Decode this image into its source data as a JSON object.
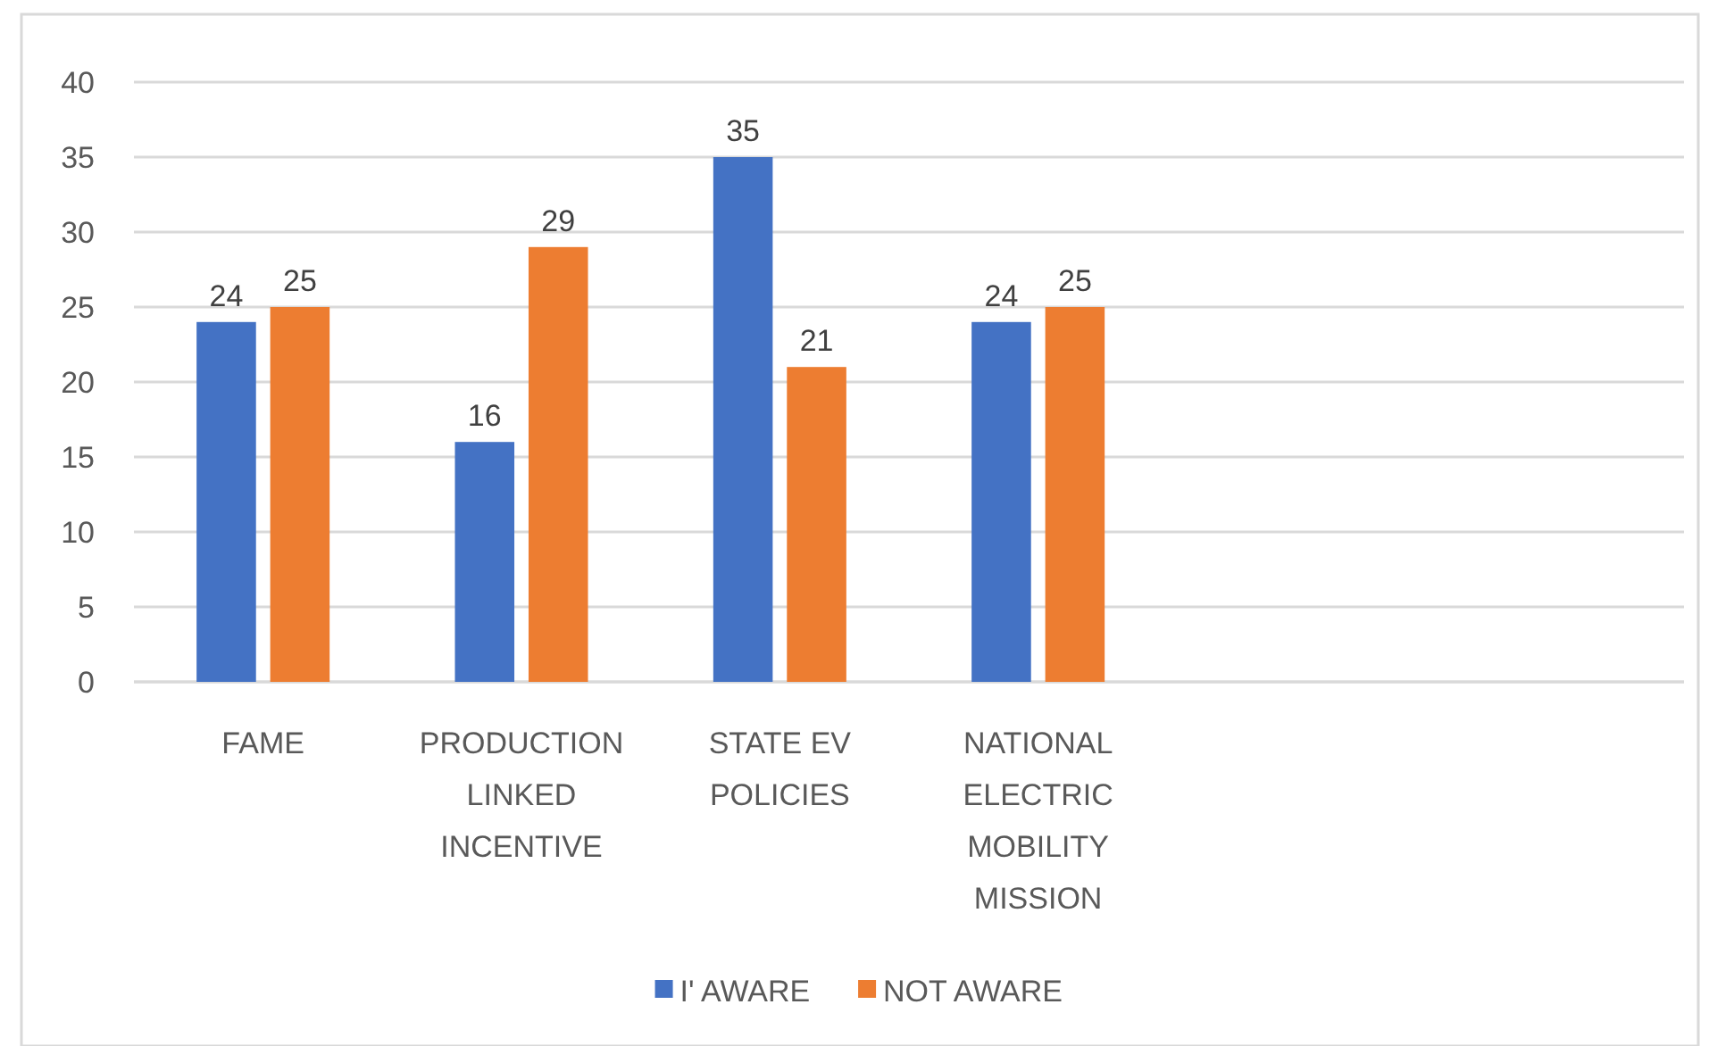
{
  "chart_data": {
    "type": "bar",
    "categories": [
      "FAME",
      "PRODUCTION LINKED INCENTIVE",
      "STATE EV POLICIES",
      "NATIONAL ELECTRIC MOBILITY MISSION",
      null,
      null
    ],
    "series": [
      {
        "name": "I' AWARE",
        "color": "#4472c4",
        "values": [
          24,
          16,
          35,
          24,
          null,
          null
        ]
      },
      {
        "name": "NOT AWARE",
        "color": "#ed7d31",
        "values": [
          25,
          29,
          21,
          25,
          null,
          null
        ]
      }
    ],
    "ylim": [
      0,
      40
    ],
    "yticks": [
      0,
      5,
      10,
      15,
      20,
      25,
      30,
      35,
      40
    ],
    "grid": "y",
    "data_labels": true,
    "legend": "bottom"
  }
}
